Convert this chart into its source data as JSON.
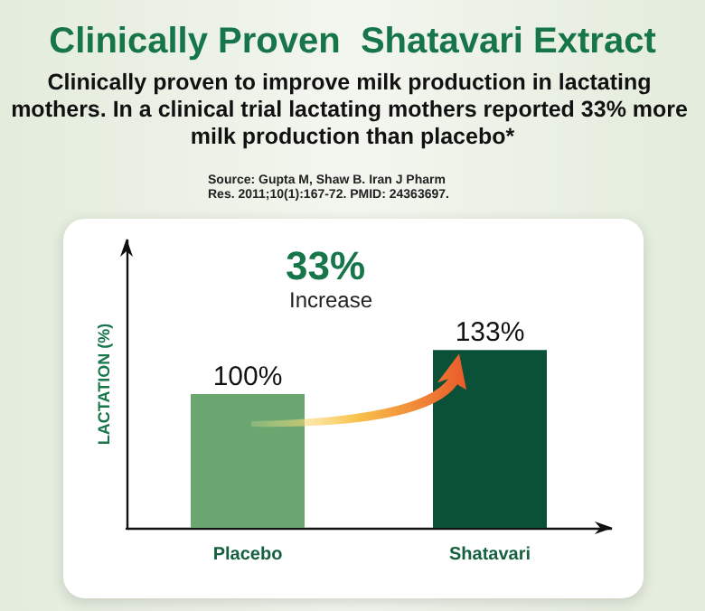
{
  "chart_data": {
    "type": "bar",
    "title": "Clinically Proven  Shatavari Extract",
    "subtitle": "Clinically proven to improve milk production in lactating mothers. In a clinical trial lactating mothers reported 33% more milk production than placebo*",
    "annotations": [
      "Source: Gupta M, Shaw B. Iran J Pharm Res. 2011;10(1):167-72. PMID: 24363697.",
      "33%",
      "Increase"
    ],
    "ylabel": "LACTATION (%)",
    "categories": [
      "Placebo",
      "Shatavari"
    ],
    "values": [
      100,
      133
    ],
    "colors": [
      "#6aa66f",
      "#0b5138"
    ],
    "value_labels": [
      "100%",
      "133%"
    ],
    "ylim": [
      0,
      215
    ],
    "tick_labels": "x"
  }
}
